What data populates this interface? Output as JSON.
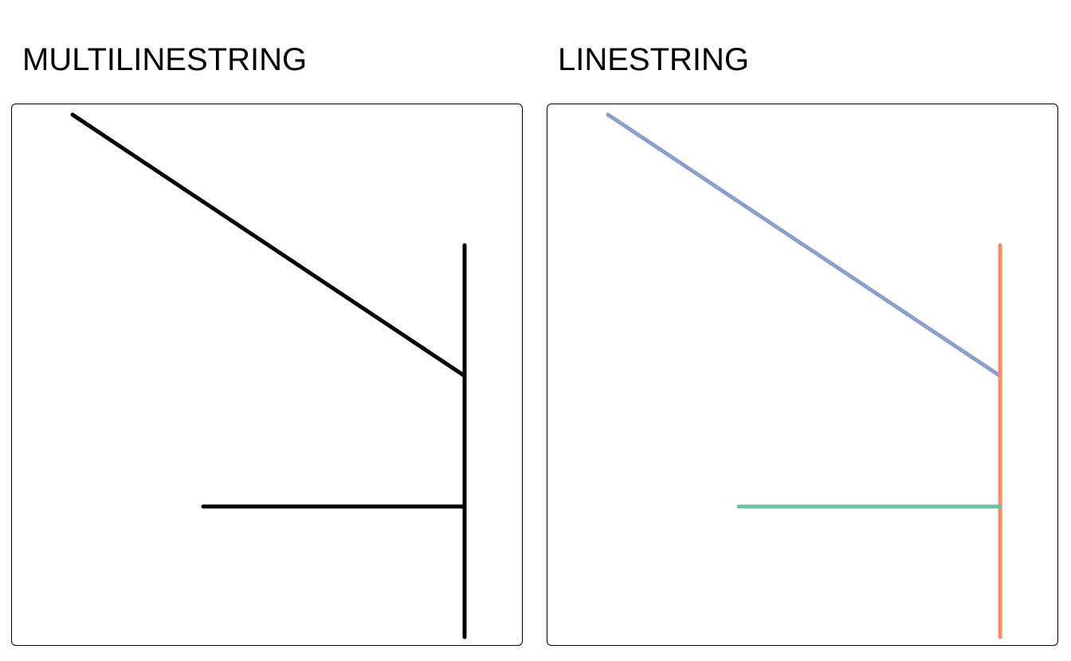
{
  "panels": [
    {
      "title": "MULTILINESTRING",
      "geometry_type": "multilinestring",
      "lines": [
        {
          "color": "#000000",
          "points": [
            [
              0,
              10
            ],
            [
              15,
              0
            ]
          ]
        },
        {
          "color": "#000000",
          "points": [
            [
              15,
              5
            ],
            [
              15,
              -10
            ]
          ]
        },
        {
          "color": "#000000",
          "points": [
            [
              5,
              -5
            ],
            [
              15,
              -5
            ]
          ]
        }
      ]
    },
    {
      "title": "LINESTRING",
      "geometry_type": "linestring",
      "lines": [
        {
          "color": "#8DA0CB",
          "points": [
            [
              0,
              10
            ],
            [
              15,
              0
            ]
          ]
        },
        {
          "color": "#FC8D62",
          "points": [
            [
              15,
              5
            ],
            [
              15,
              -10
            ]
          ]
        },
        {
          "color": "#66C2A5",
          "points": [
            [
              5,
              -5
            ],
            [
              15,
              -5
            ]
          ]
        }
      ]
    }
  ]
}
